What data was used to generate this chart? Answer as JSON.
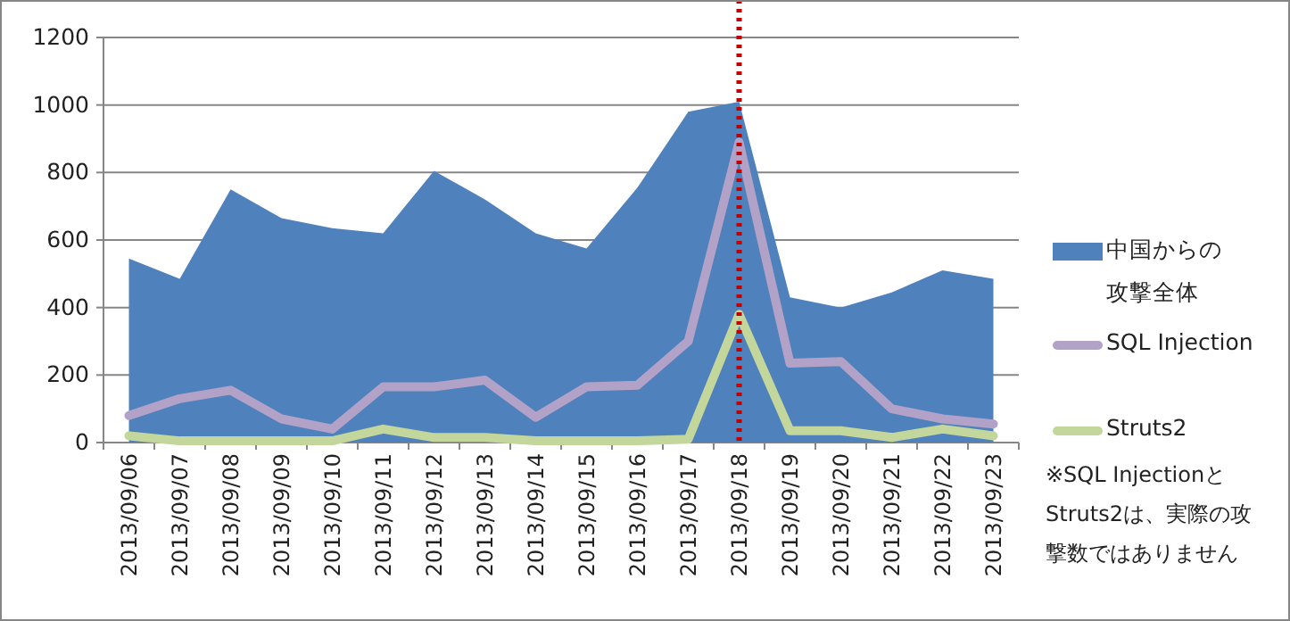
{
  "chart_data": {
    "type": "area",
    "categories": [
      "2013/09/06",
      "2013/09/07",
      "2013/09/08",
      "2013/09/09",
      "2013/09/10",
      "2013/09/11",
      "2013/09/12",
      "2013/09/13",
      "2013/09/14",
      "2013/09/15",
      "2013/09/16",
      "2013/09/17",
      "2013/09/18",
      "2013/09/19",
      "2013/09/20",
      "2013/09/21",
      "2013/09/22",
      "2013/09/23"
    ],
    "series": [
      {
        "name": "中国からの攻撃全体",
        "color": "#4f81bd",
        "values": [
          545,
          485,
          750,
          665,
          635,
          620,
          805,
          720,
          620,
          575,
          755,
          980,
          1010,
          430,
          400,
          445,
          510,
          485
        ]
      },
      {
        "name": "SQL Injection",
        "type": "line",
        "color": "#b3a2c7",
        "values": [
          80,
          130,
          155,
          70,
          40,
          165,
          165,
          185,
          75,
          165,
          170,
          300,
          890,
          235,
          240,
          100,
          70,
          55
        ]
      },
      {
        "name": "Struts2",
        "type": "line",
        "color": "#c3d69b",
        "values": [
          20,
          5,
          5,
          5,
          5,
          40,
          15,
          15,
          5,
          5,
          5,
          10,
          380,
          35,
          35,
          15,
          40,
          20
        ]
      }
    ],
    "ylim": [
      0,
      1200
    ],
    "yticks": [
      0,
      200,
      400,
      600,
      800,
      1000,
      1200
    ],
    "grid": "y",
    "legend": "right",
    "ref_lines": [
      {
        "axis": "x",
        "value": "2013/09/18",
        "color": "#c00000",
        "line_style": "dotted"
      }
    ],
    "annotations": [
      "※SQL InjectionとStruts2は、実際の攻撃数ではありません"
    ]
  }
}
